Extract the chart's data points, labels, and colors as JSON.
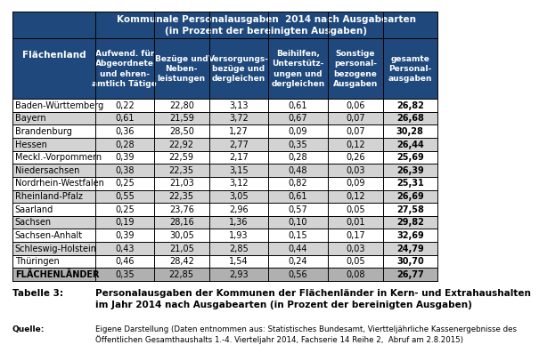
{
  "title_row1": "Kommunale Personalausgaben  2014 nach Ausgabearten",
  "title_row2": "(in Prozent der bereinigten Ausgaben)",
  "col_header_left": "Flächenland",
  "col_headers": [
    "Aufwend. für\nAbgeordnete\nund ehren-\namtlich Tätige",
    "Bezüge und\nNeben-\nleistungen",
    "Versorgungs-\nbezüge und\ndergleichen",
    "Beihilfen,\nUnterstütz-\nungen und\ndergleichen",
    "Sonstige\npersonal-\nbezogene\nAusgaben",
    "gesamte\nPersonal-\nausgaben"
  ],
  "rows": [
    [
      "Baden-Württemberg",
      "0,22",
      "22,80",
      "3,13",
      "0,61",
      "0,06",
      "26,82"
    ],
    [
      "Bayern",
      "0,61",
      "21,59",
      "3,72",
      "0,67",
      "0,07",
      "26,68"
    ],
    [
      "Brandenburg",
      "0,36",
      "28,50",
      "1,27",
      "0,09",
      "0,07",
      "30,28"
    ],
    [
      "Hessen",
      "0,28",
      "22,92",
      "2,77",
      "0,35",
      "0,12",
      "26,44"
    ],
    [
      "Meckl.-Vorpommern",
      "0,39",
      "22,59",
      "2,17",
      "0,28",
      "0,26",
      "25,69"
    ],
    [
      "Niedersachsen",
      "0,38",
      "22,35",
      "3,15",
      "0,48",
      "0,03",
      "26,39"
    ],
    [
      "Nordrhein-Westfalen",
      "0,25",
      "21,03",
      "3,12",
      "0,82",
      "0,09",
      "25,31"
    ],
    [
      "Rheinland-Pfalz",
      "0,55",
      "22,35",
      "3,05",
      "0,61",
      "0,12",
      "26,69"
    ],
    [
      "Saarland",
      "0,25",
      "23,76",
      "2,96",
      "0,57",
      "0,05",
      "27,58"
    ],
    [
      "Sachsen",
      "0,19",
      "28,16",
      "1,36",
      "0,10",
      "0,01",
      "29,82"
    ],
    [
      "Sachsen-Anhalt",
      "0,39",
      "30,05",
      "1,93",
      "0,15",
      "0,17",
      "32,69"
    ],
    [
      "Schleswig-Holstein",
      "0,43",
      "21,05",
      "2,85",
      "0,44",
      "0,03",
      "24,79"
    ],
    [
      "Thüringen",
      "0,46",
      "28,42",
      "1,54",
      "0,24",
      "0,05",
      "30,70"
    ],
    [
      "FLÄCHENLÄNDER",
      "0,35",
      "22,85",
      "2,93",
      "0,56",
      "0,08",
      "26,77"
    ]
  ],
  "footer_label": "Tabelle 3:",
  "footer_text": "Personalausgaben der Kommunen der Flächenländer in Kern- und Extrahaushalten\nim Jahr 2014 nach Ausgabearten (in Prozent der bereinigten Ausgaben)",
  "source_label": "Quelle:",
  "source_text": "Eigene Darstellung (Daten entnommen aus: Statistisches Bundesamt, Viertteljährliche Kassenergebnisse des\nÖffentlichen Gesamthaushalts 1.-4. Vierteljahr 2014, Fachserie 14 Reihe 2,  Abruf am 2.8.2015)",
  "header_bg": "#1F497D",
  "header_fg": "#FFFFFF",
  "row_bg_even": "#FFFFFF",
  "row_bg_odd": "#D3D3D3",
  "last_row_bg": "#B0B0B0",
  "border_color": "#000000"
}
